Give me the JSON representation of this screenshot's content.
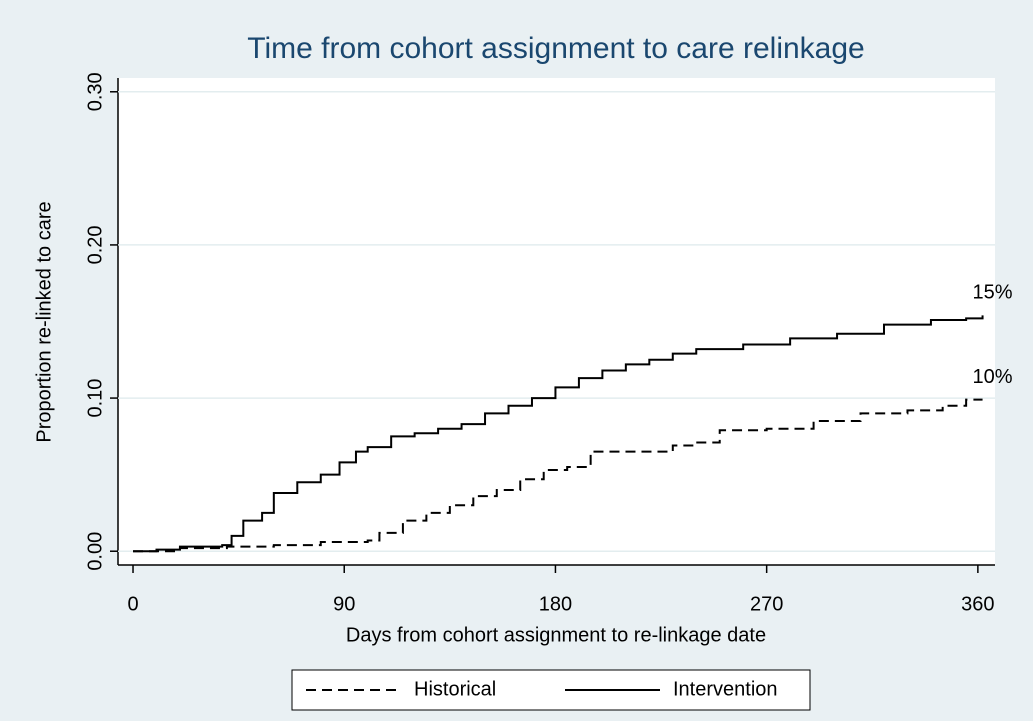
{
  "chart_data": {
    "type": "line",
    "title": "Time from cohort assignment to care relinkage",
    "x_label": "Days from cohort assignment to re-linkage date",
    "y_label": "Proportion re-linked to care",
    "xlim": [
      -6.4,
      367.3
    ],
    "ylim": [
      -0.009,
      0.309
    ],
    "xticks": [
      0,
      90,
      180,
      270,
      360
    ],
    "yticks": [
      {
        "value": 0,
        "label": "0.00"
      },
      {
        "value": 0.1,
        "label": "0.10"
      },
      {
        "value": 0.2,
        "label": "0.20"
      },
      {
        "value": 0.3,
        "label": "0.30"
      }
    ],
    "grid": true,
    "step": true,
    "legend": "bottom",
    "series": [
      {
        "name": "Historical",
        "color": "#000000",
        "dashed": true,
        "x": [
          0,
          20,
          40,
          60,
          80,
          100,
          105,
          115,
          125,
          135,
          145,
          155,
          165,
          175,
          185,
          195,
          210,
          230,
          240,
          250,
          270,
          290,
          310,
          330,
          345,
          355,
          362
        ],
        "values": [
          0,
          0.002,
          0.003,
          0.004,
          0.006,
          0.007,
          0.012,
          0.02,
          0.025,
          0.03,
          0.036,
          0.04,
          0.047,
          0.053,
          0.055,
          0.065,
          0.065,
          0.069,
          0.071,
          0.079,
          0.08,
          0.085,
          0.09,
          0.092,
          0.095,
          0.099,
          0.099
        ],
        "end_label": "10%"
      },
      {
        "name": "Intervention",
        "color": "#000000",
        "dashed": false,
        "x": [
          0,
          10,
          20,
          38,
          42,
          47,
          55,
          60,
          70,
          80,
          88,
          95,
          100,
          110,
          120,
          130,
          140,
          150,
          160,
          170,
          180,
          190,
          200,
          210,
          220,
          230,
          240,
          260,
          280,
          300,
          320,
          340,
          355,
          362
        ],
        "values": [
          0,
          0.001,
          0.003,
          0.004,
          0.01,
          0.02,
          0.025,
          0.038,
          0.045,
          0.05,
          0.058,
          0.065,
          0.068,
          0.075,
          0.077,
          0.08,
          0.083,
          0.09,
          0.095,
          0.1,
          0.107,
          0.113,
          0.118,
          0.122,
          0.125,
          0.129,
          0.132,
          0.135,
          0.139,
          0.142,
          0.148,
          0.151,
          0.152,
          0.154
        ],
        "end_label": "15%"
      }
    ]
  }
}
